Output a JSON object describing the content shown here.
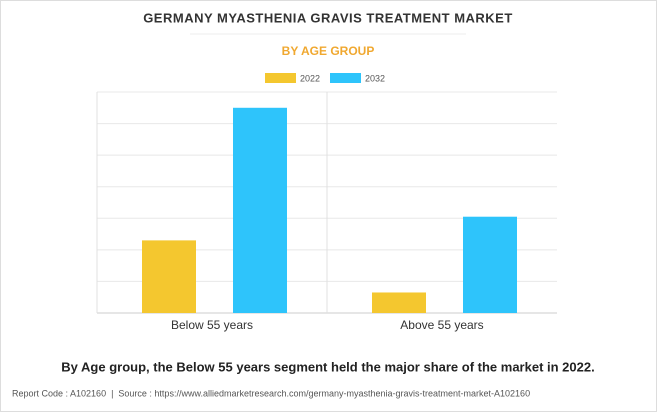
{
  "chart_data": {
    "type": "bar",
    "title": "GERMANY MYASTHENIA GRAVIS TREATMENT MARKET",
    "subtitle": "BY AGE GROUP",
    "categories": [
      "Below 55 years",
      "Above 55 years"
    ],
    "series": [
      {
        "name": "2022",
        "color": "#f4c72f",
        "values": [
          2.3,
          0.65
        ]
      },
      {
        "name": "2032",
        "color": "#2ec4fb",
        "values": [
          6.5,
          3.05
        ]
      }
    ],
    "ylim": [
      0,
      7
    ],
    "yticks": [
      0,
      1,
      2,
      3,
      4,
      5,
      6,
      7
    ],
    "grid": true,
    "legend": "top"
  },
  "caption": "By Age group, the Below 55 years segment held the major share of the market in 2022.",
  "footer": "Report Code : A102160  |  Source : https://www.alliedmarketresearch.com/germany-myasthenia-gravis-treatment-market-A102160"
}
